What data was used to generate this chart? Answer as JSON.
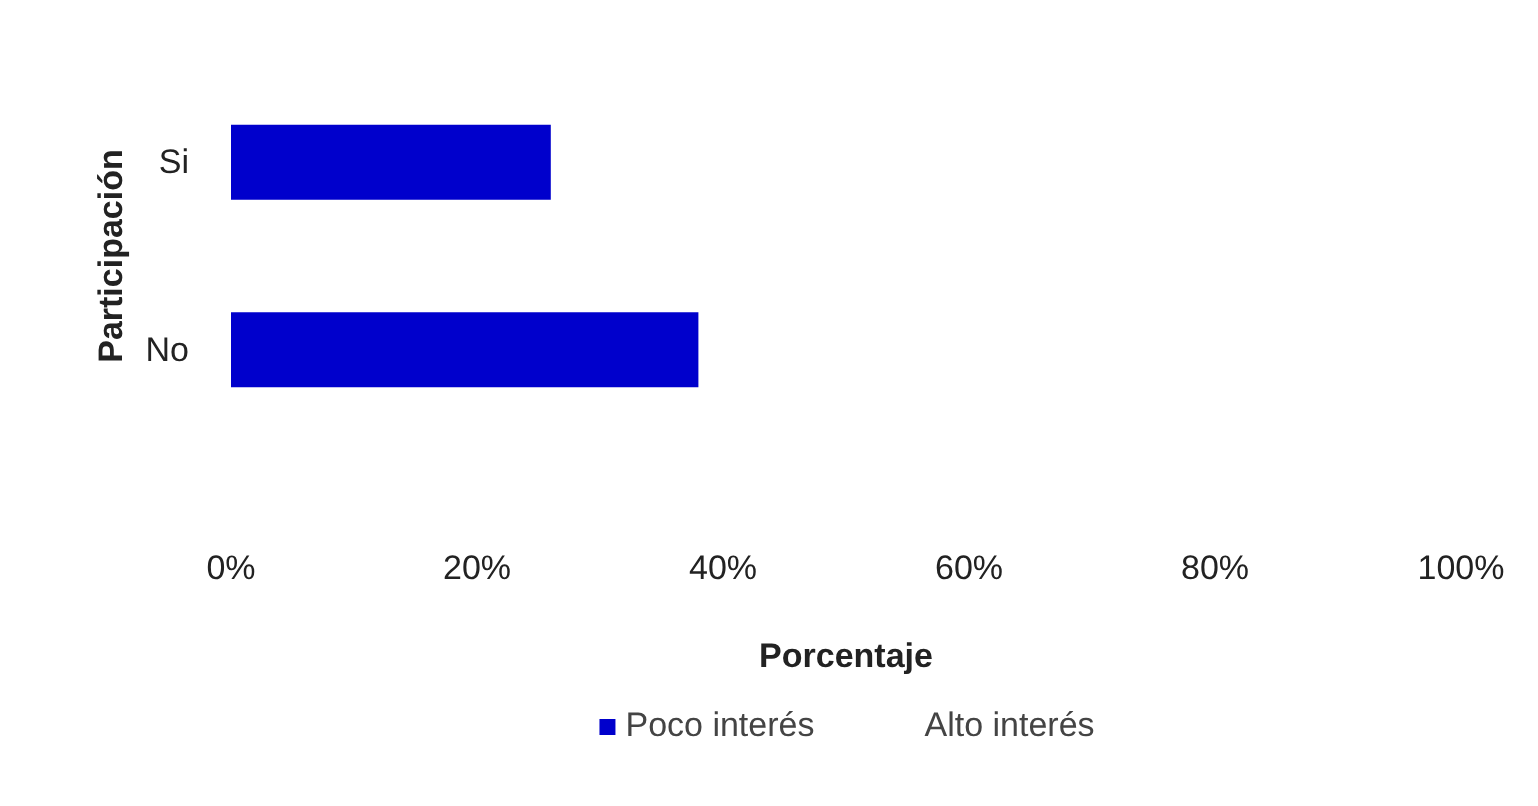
{
  "chart_data": {
    "type": "bar",
    "orientation": "horizontal",
    "xlabel": "Porcentaje",
    "ylabel": "Participación",
    "categories": [
      "Si",
      "No"
    ],
    "series": [
      {
        "name": "Poco interés",
        "color": "#0000cc",
        "values": [
          26,
          38
        ]
      },
      {
        "name": "Alto interés",
        "values": [
          null,
          null
        ]
      }
    ],
    "xlim": [
      0,
      100
    ],
    "xticks": [
      {
        "value": 0,
        "label": "0%"
      },
      {
        "value": 20,
        "label": "20%"
      },
      {
        "value": 40,
        "label": "40%"
      },
      {
        "value": 60,
        "label": "60%"
      },
      {
        "value": 80,
        "label": "80%"
      },
      {
        "value": 100,
        "label": "100%"
      }
    ],
    "grid": false,
    "legend": "bottom"
  }
}
